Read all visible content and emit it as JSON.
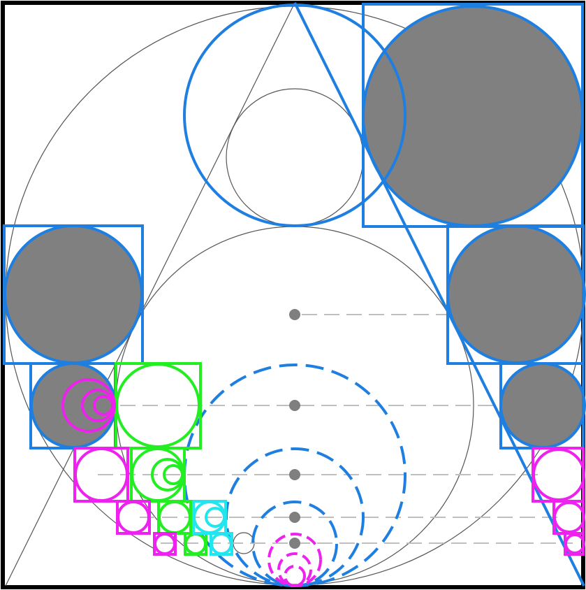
{
  "colors": {
    "background": "#ffffff",
    "frame": "#000000",
    "thin_line": "#555555",
    "blue": "#1e7fe0",
    "gray_fill": "#808080",
    "green": "#22ee22",
    "magenta": "#ee22ee",
    "cyan": "#22e6ee",
    "dash_gray": "#bfbfbf",
    "dot_gray": "#7f7f7f"
  }
}
